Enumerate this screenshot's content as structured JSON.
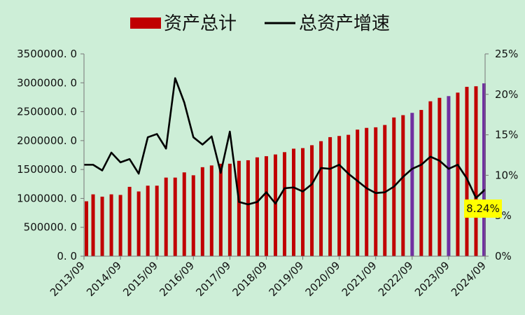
{
  "chart_data": {
    "type": "bar",
    "legend": {
      "position": "top",
      "items": [
        {
          "label": "资产总计",
          "kind": "bar",
          "color": "#c00000"
        },
        {
          "label": "总资产增速",
          "kind": "line",
          "color": "#000000"
        }
      ]
    },
    "grid": false,
    "y_left": {
      "ylim": [
        0,
        3500000
      ],
      "ticks": [
        "0. 0",
        "500000. 0",
        "1000000. 0",
        "1500000. 0",
        "2000000. 0",
        "2500000. 0",
        "3000000. 0",
        "3500000. 0"
      ]
    },
    "y_right": {
      "ylim": [
        0,
        25
      ],
      "unit": "%",
      "ticks": [
        "0%",
        "5%",
        "10%",
        "15%",
        "20%",
        "25%"
      ]
    },
    "x_tick_labels": [
      "2013/09",
      "2014/09",
      "2015/09",
      "2016/09",
      "2017/09",
      "2018/09",
      "2019/09",
      "2020/09",
      "2021/09",
      "2022/09",
      "2023/09",
      "2024/09"
    ],
    "colors": {
      "bar_default": "#c00000",
      "bar_highlight": "#7030a0",
      "line": "#000000",
      "annotation_bg": "#ffff00"
    },
    "series": [
      {
        "name": "资产总计",
        "kind": "bar",
        "axis": "left",
        "values": [
          950000,
          1070000,
          1030000,
          1070000,
          1060000,
          1200000,
          1120000,
          1220000,
          1220000,
          1360000,
          1360000,
          1450000,
          1400000,
          1540000,
          1570000,
          1600000,
          1600000,
          1650000,
          1660000,
          1710000,
          1730000,
          1760000,
          1800000,
          1860000,
          1870000,
          1920000,
          1990000,
          2060000,
          2080000,
          2100000,
          2190000,
          2220000,
          2230000,
          2270000,
          2400000,
          2440000,
          2480000,
          2530000,
          2680000,
          2740000,
          2770000,
          2830000,
          2930000,
          2940000,
          2990000
        ],
        "highlight_indices": [
          36,
          40,
          44
        ]
      },
      {
        "name": "总资产增速",
        "kind": "line",
        "axis": "right",
        "values": [
          11.3,
          11.3,
          10.6,
          12.8,
          11.6,
          12.0,
          10.2,
          14.7,
          15.1,
          13.3,
          22.0,
          19.0,
          14.7,
          13.8,
          14.8,
          10.3,
          15.4,
          6.7,
          6.4,
          6.7,
          7.9,
          6.5,
          8.4,
          8.5,
          8.0,
          8.9,
          10.9,
          10.8,
          11.3,
          10.2,
          9.3,
          8.4,
          7.8,
          7.9,
          8.6,
          9.8,
          10.8,
          11.3,
          12.3,
          11.8,
          10.8,
          11.3,
          9.6,
          7.2,
          8.24
        ]
      }
    ],
    "annotations": [
      {
        "text": "8.24%",
        "series": "总资产增速",
        "index": 44
      }
    ]
  }
}
